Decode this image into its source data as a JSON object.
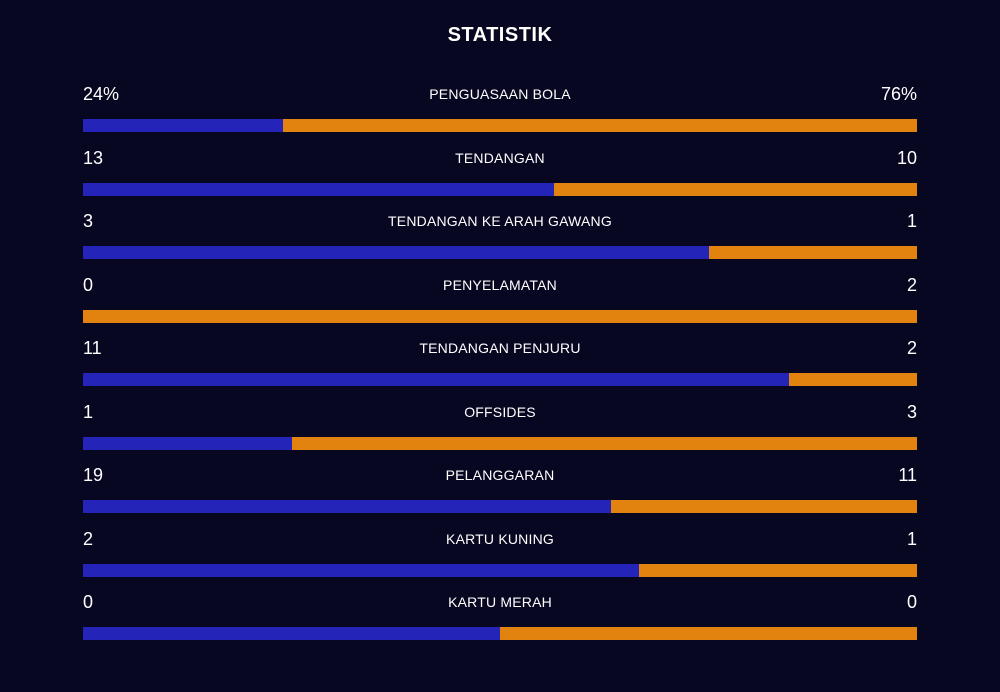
{
  "title": "STATISTIK",
  "colors": {
    "background": "#070722",
    "home": "#2424b8",
    "away": "#e2830f"
  },
  "stats": [
    {
      "label": "PENGUASAAN BOLA",
      "home": "24%",
      "away": "76%",
      "home_share": 0.24
    },
    {
      "label": "TENDANGAN",
      "home": "13",
      "away": "10",
      "home_share": 0.565
    },
    {
      "label": "TENDANGAN KE ARAH GAWANG",
      "home": "3",
      "away": "1",
      "home_share": 0.75
    },
    {
      "label": "PENYELAMATAN",
      "home": "0",
      "away": "2",
      "home_share": 0.0
    },
    {
      "label": "TENDANGAN PENJURU",
      "home": "11",
      "away": "2",
      "home_share": 0.846
    },
    {
      "label": "OFFSIDES",
      "home": "1",
      "away": "3",
      "home_share": 0.25
    },
    {
      "label": "PELANGGARAN",
      "home": "19",
      "away": "11",
      "home_share": 0.633
    },
    {
      "label": "KARTU KUNING",
      "home": "2",
      "away": "1",
      "home_share": 0.667
    },
    {
      "label": "KARTU MERAH",
      "home": "0",
      "away": "0",
      "home_share": 0.5
    }
  ]
}
